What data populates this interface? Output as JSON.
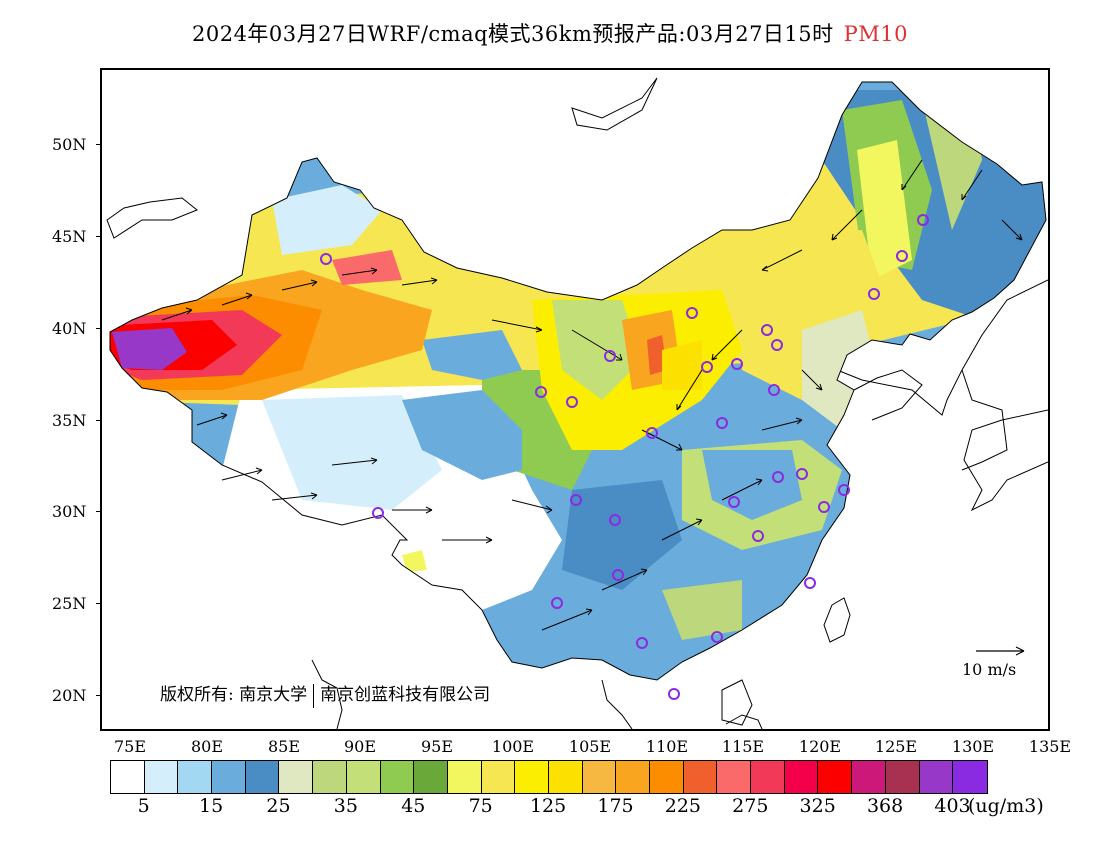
{
  "title": {
    "main": "2024年03月27日WRF/cmaq模式36km预报产品:03月27日15时",
    "species": "PM10",
    "species_color": "#e03030"
  },
  "map": {
    "lat_labels": [
      "50N",
      "45N",
      "40N",
      "35N",
      "30N",
      "25N",
      "20N"
    ],
    "lon_labels": [
      "75E",
      "80E",
      "85E",
      "90E",
      "95E",
      "100E",
      "105E",
      "110E",
      "115E",
      "120E",
      "125E",
      "130E",
      "135E"
    ],
    "copyright_prefix": "版权所有:",
    "copyright_org1": "南京大学",
    "copyright_org2": "南京创蓝科技有限公司",
    "reference_vector_label": "10 m/s"
  },
  "colorbar": {
    "colors": [
      "#ffffff",
      "#d5eefb",
      "#a3d8f3",
      "#6aacdc",
      "#4a8cc4",
      "#dfe8c0",
      "#bcd77c",
      "#c3df78",
      "#8ecb50",
      "#6aa83a",
      "#f2f760",
      "#f6e752",
      "#fcee00",
      "#fce000",
      "#f6b840",
      "#f9a520",
      "#fc8c00",
      "#f0602c",
      "#fb6a6a",
      "#f23a58",
      "#f4004a",
      "#fc0000",
      "#cc1878",
      "#a83050",
      "#9838c8",
      "#8a2be2"
    ],
    "labels": [
      "5",
      "15",
      "25",
      "35",
      "45",
      "75",
      "125",
      "175",
      "225",
      "275",
      "325",
      "368",
      "403"
    ],
    "unit": "(ug/m3)"
  }
}
